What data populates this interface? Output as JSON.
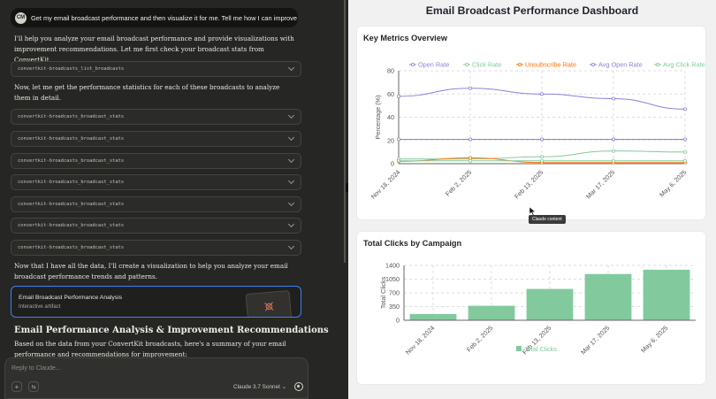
{
  "chat": {
    "user_avatar": "CM",
    "user_message": "Get my email broadcast performance and then visualize it for me. Tell me how I can improve",
    "intro": "I'll help you analyze your email broadcast performance and provide visualizations with improvement recommendations. Let me first check your broadcast stats from ConvertKit.",
    "tool_list": "convertkit-broadcasts_list_broadcasts",
    "stats_intro": "Now, let me get the performance statistics for each of these broadcasts to analyze them in detail.",
    "tool_stats": [
      "convertkit-broadcasts_broadcast_stats",
      "convertkit-broadcasts_broadcast_stats",
      "convertkit-broadcasts_broadcast_stats",
      "convertkit-broadcasts_broadcast_stats",
      "convertkit-broadcasts_broadcast_stats",
      "convertkit-broadcasts_broadcast_stats",
      "convertkit-broadcasts_broadcast_stats"
    ],
    "viz_intro": "Now that I have all the data, I'll create a visualization to help you analyze your email broadcast performance trends and patterns.",
    "artifact_title": "Email Broadcast Performance Analysis",
    "artifact_sub": "Interactive artifact",
    "section_heading": "Email Performance Analysis & Improvement Recommendations",
    "summary": "Based on the data from your ConvertKit broadcasts, here's a summary of your email performance and recommendations for improvement:",
    "input_placeholder": "Reply to Claude...",
    "model": "Claude 3.7 Sonnet",
    "plus_icon": "+",
    "tools_icon": "⇆",
    "model_chevron": "⌄"
  },
  "dashboard": {
    "title": "Email Broadcast Performance Dashboard",
    "tooltip": "Claude content"
  },
  "colors": {
    "open": "#8884d8",
    "click": "#82ca9d",
    "unsub": "#ff7300",
    "bar": "#82ca9d",
    "artifact_border": "#3b82f6"
  },
  "chart_data": [
    {
      "type": "line",
      "title": "Key Metrics Overview",
      "ylabel": "Percentage (%)",
      "ylim": [
        0,
        80
      ],
      "yticks": [
        0,
        20,
        40,
        60,
        80
      ],
      "categories": [
        "Nov 18, 2024",
        "Feb 2, 2025",
        "Feb 13, 2025",
        "Mar 17, 2025",
        "May 6, 2025"
      ],
      "legend_position": "top",
      "grid": true,
      "series": [
        {
          "name": "Open Rate",
          "values": [
            58,
            65,
            60,
            56,
            47
          ]
        },
        {
          "name": "Click Rate",
          "values": [
            4,
            4,
            6,
            11,
            10
          ]
        },
        {
          "name": "Unsubscribe Rate",
          "values": [
            2,
            5,
            1,
            1,
            1
          ]
        },
        {
          "name": "Avg Open Rate",
          "values": [
            21,
            21,
            21,
            21,
            21
          ]
        },
        {
          "name": "Avg Click Rate",
          "values": [
            2.5,
            2.5,
            2.5,
            2.5,
            2.5
          ]
        }
      ]
    },
    {
      "type": "bar",
      "title": "Total Clicks by Campaign",
      "ylabel": "Total Clicks",
      "ylim": [
        0,
        1400
      ],
      "yticks": [
        0,
        350,
        700,
        1050,
        1400
      ],
      "categories": [
        "Nov 18, 2024",
        "Feb 2, 2025",
        "Feb 13, 2025",
        "Mar 17, 2025",
        "May 6, 2025"
      ],
      "legend_position": "bottom",
      "grid": true,
      "series": [
        {
          "name": "Total Clicks",
          "values": [
            160,
            370,
            800,
            1180,
            1290
          ]
        }
      ]
    }
  ]
}
